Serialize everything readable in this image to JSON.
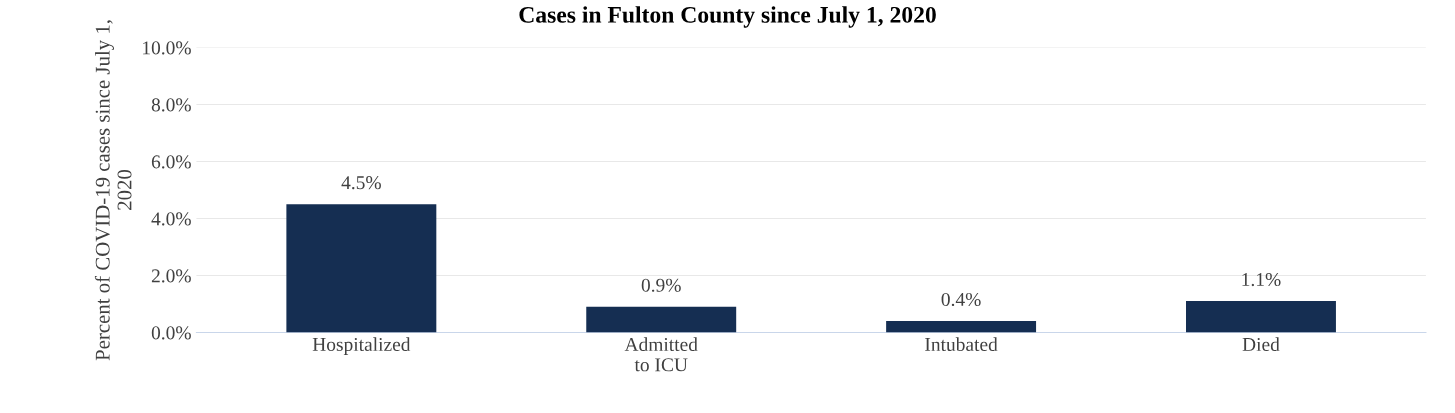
{
  "chart_data": {
    "type": "bar",
    "title": "Cases in Fulton County since July 1, 2020",
    "ylabel": "Percent of COVID-19 cases since July 1, 2020",
    "categories": [
      "Hospitalized",
      "Admitted\nto ICU",
      "Intubated",
      "Died"
    ],
    "values": [
      4.5,
      0.9,
      0.4,
      1.1
    ],
    "value_labels": [
      "4.5%",
      "0.9%",
      "0.4%",
      "1.1%"
    ],
    "color": "#152e52",
    "ylim": [
      0,
      10
    ],
    "yticks": [
      {
        "value": 0,
        "label": "0.0%"
      },
      {
        "value": 2,
        "label": "2.0%"
      },
      {
        "value": 4,
        "label": "4.0%"
      },
      {
        "value": 6,
        "label": "6.0%"
      },
      {
        "value": 8,
        "label": "8.0%"
      },
      {
        "value": 10,
        "label": "10.0%"
      }
    ],
    "grid": "y"
  }
}
